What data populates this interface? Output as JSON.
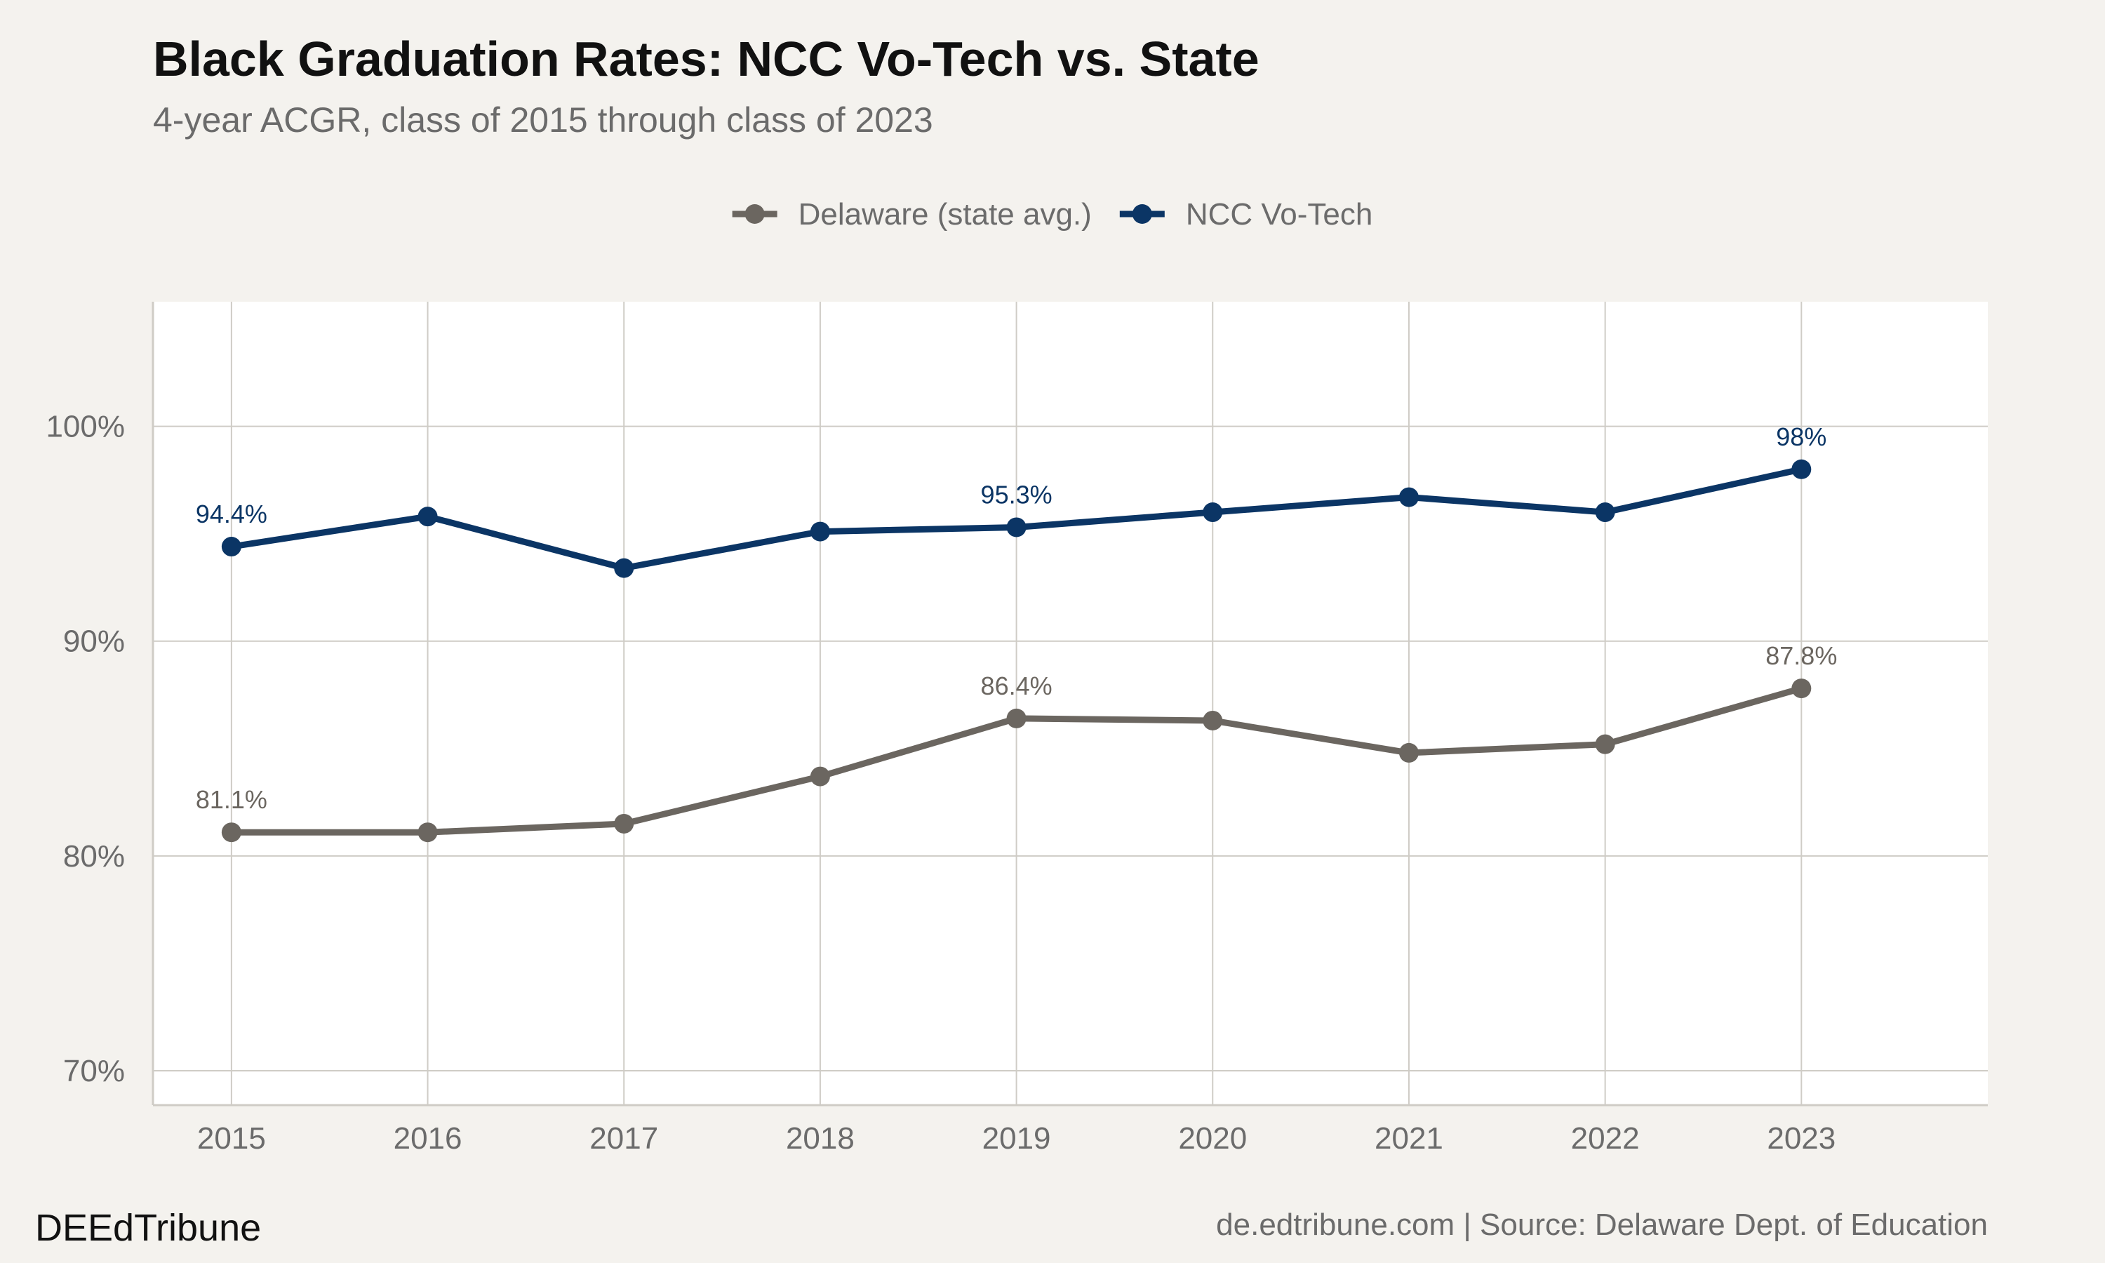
{
  "header": {
    "title": "Black Graduation Rates: NCC Vo-Tech vs. State",
    "subtitle": "4-year ACGR, class of 2015 through class of 2023"
  },
  "footer": {
    "brand": "DEEdTribune",
    "source": "de.edtribune.com | Source: Delaware Dept. of Education"
  },
  "colors": {
    "background": "#f4f2ee",
    "panel": "#ffffff",
    "grid": "#cfccc6",
    "state": "#6b6660",
    "votech": "#0b3565"
  },
  "chart_data": {
    "type": "line",
    "title": "Black Graduation Rates: NCC Vo-Tech vs. State",
    "subtitle": "4-year ACGR, class of 2015 through class of 2023",
    "xlabel": "",
    "ylabel": "",
    "x": [
      2015,
      2016,
      2017,
      2018,
      2019,
      2020,
      2021,
      2022,
      2023
    ],
    "xlim": [
      2014.6,
      2023.95
    ],
    "ylim": [
      68.4,
      105.8
    ],
    "yticks": [
      70,
      80,
      90,
      100
    ],
    "ytick_labels": [
      "70%",
      "80%",
      "90%",
      "100%"
    ],
    "grid": true,
    "legend_position": "top",
    "series": [
      {
        "name": "Delaware (state avg.)",
        "color": "#6b6660",
        "values": [
          81.1,
          81.1,
          81.5,
          83.7,
          86.4,
          86.3,
          84.8,
          85.2,
          87.8
        ],
        "labels": [
          {
            "x": 2015,
            "value": 81.1,
            "text": "81.1%"
          },
          {
            "x": 2019,
            "value": 86.4,
            "text": "86.4%"
          },
          {
            "x": 2023,
            "value": 87.8,
            "text": "87.8%"
          }
        ]
      },
      {
        "name": "NCC Vo-Tech",
        "color": "#0b3565",
        "values": [
          94.4,
          95.8,
          93.4,
          95.1,
          95.3,
          96.0,
          96.7,
          96.0,
          98.0
        ],
        "labels": [
          {
            "x": 2015,
            "value": 94.4,
            "text": "94.4%"
          },
          {
            "x": 2019,
            "value": 95.3,
            "text": "95.3%"
          },
          {
            "x": 2023,
            "value": 98.0,
            "text": "98%"
          }
        ]
      }
    ]
  }
}
